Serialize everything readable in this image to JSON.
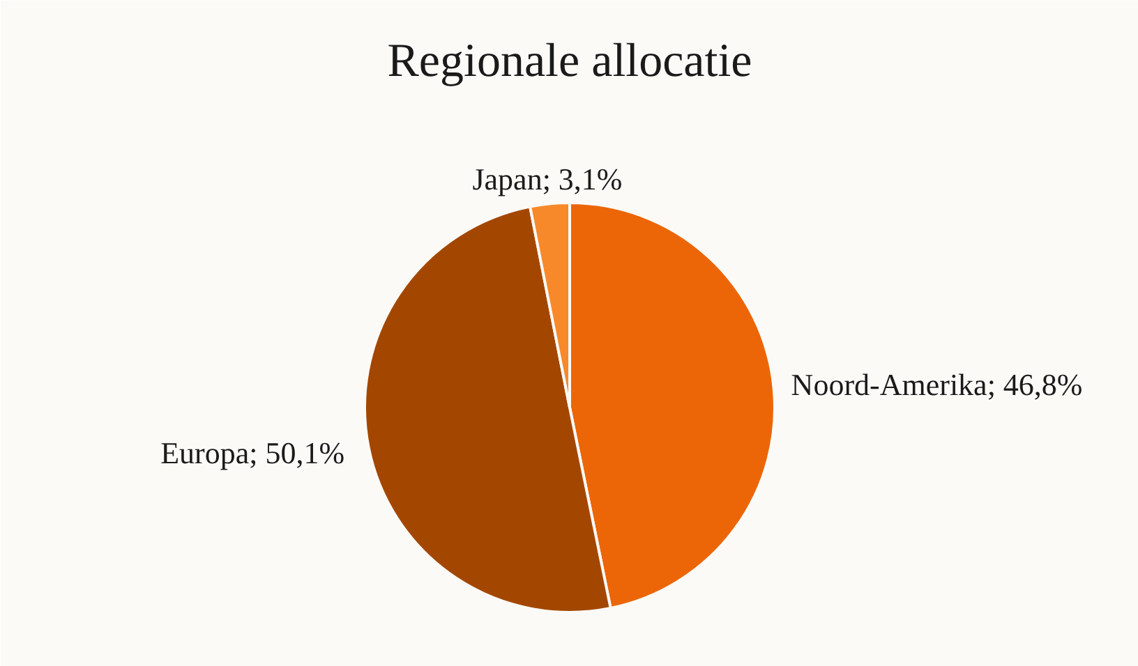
{
  "chart_data": {
    "type": "pie",
    "title": "Regionale allocatie",
    "categories": [
      "Noord-Amerika",
      "Europa",
      "Japan"
    ],
    "values": [
      46.8,
      50.1,
      3.1
    ],
    "value_labels": [
      "46,8%",
      "50,1%",
      "3,1%"
    ],
    "colors": [
      "#ec6608",
      "#a34700",
      "#f7892b"
    ],
    "legend": false
  }
}
